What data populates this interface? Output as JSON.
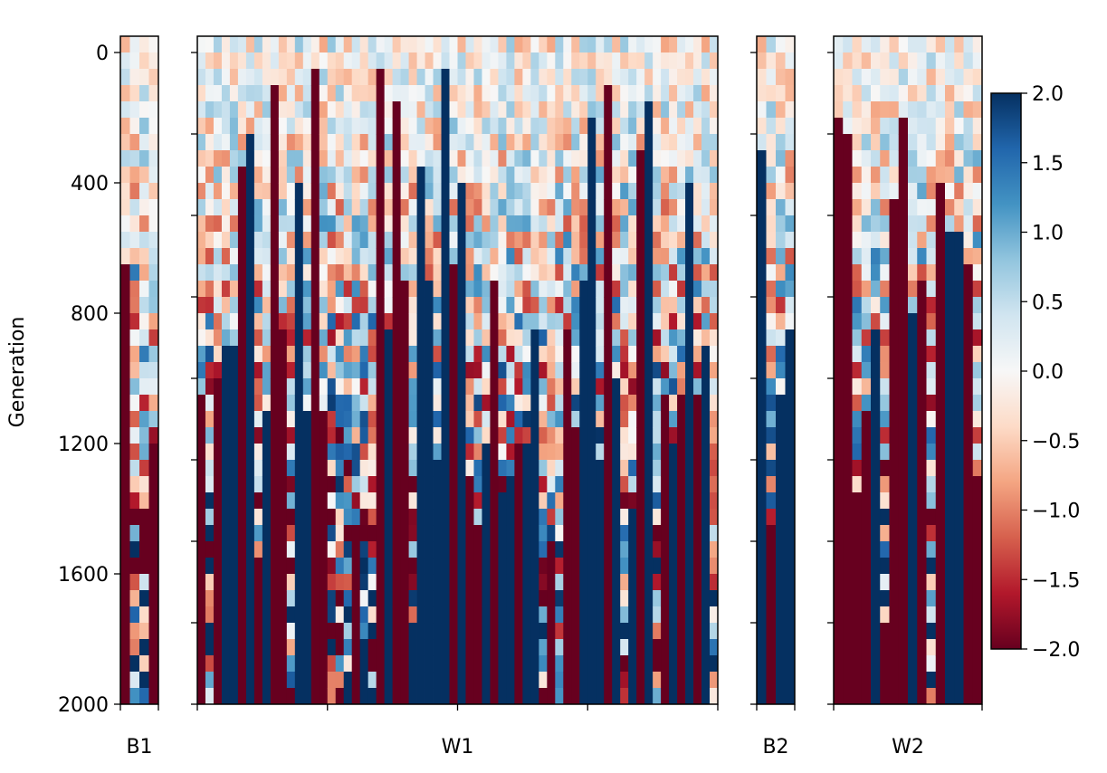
{
  "chart_data": {
    "type": "heatmap",
    "ylabel": "Generation",
    "ylim": [
      2000,
      0
    ],
    "y_ticks": [
      "0",
      "400",
      "800",
      "1200",
      "1600",
      "2000"
    ],
    "y_tick_values": [
      0,
      400,
      800,
      1200,
      1600,
      2000
    ],
    "y_minor_ticks": [
      0,
      250,
      500,
      750,
      1000,
      1250,
      1500,
      1750,
      2000
    ],
    "generation_step": 50,
    "colormap": "RdBu",
    "color_range": [
      -2.0,
      2.0
    ],
    "colorbar_ticks": [
      "2.0",
      "1.5",
      "1.0",
      "0.5",
      "0.0",
      "−0.5",
      "−1.0",
      "−1.5",
      "−2.0"
    ],
    "colorbar_tick_values": [
      2.0,
      1.5,
      1.0,
      0.5,
      0.0,
      -0.5,
      -1.0,
      -1.5,
      -2.0
    ],
    "colors": {
      "neg_max": "#67001f",
      "neg_high": "#b2182b",
      "neg_mid": "#d6604d",
      "neg_low": "#f4a582",
      "neg_min": "#fddbc7",
      "zero": "#f7f7f7",
      "pos_min": "#d1e5f0",
      "pos_low": "#92c5de",
      "pos_mid": "#4393c3",
      "pos_high": "#2166ac",
      "pos_max": "#053061"
    },
    "panels": [
      {
        "label": "B1",
        "columns": 4,
        "seed": 11,
        "fixed_fraction": 0.45
      },
      {
        "label": "W1",
        "columns": 64,
        "seed": 23,
        "fixed_fraction": 0.85
      },
      {
        "label": "B2",
        "columns": 4,
        "seed": 37,
        "fixed_fraction": 0.9
      },
      {
        "label": "W2",
        "columns": 16,
        "seed": 53,
        "fixed_fraction": 0.8
      }
    ]
  }
}
